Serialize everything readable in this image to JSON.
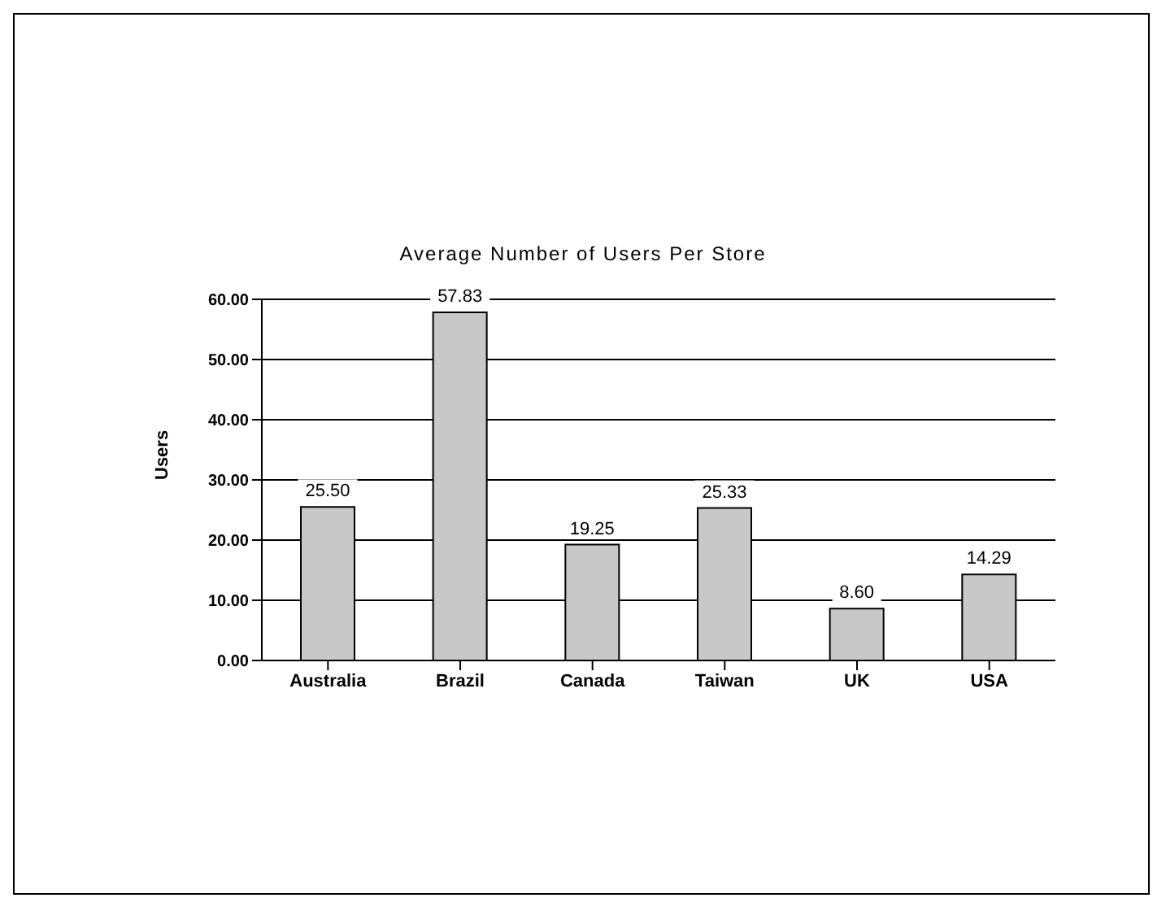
{
  "chart_data": {
    "type": "bar",
    "title": "Average Number of Users Per Store",
    "ylabel": "Users",
    "categories": [
      "Australia",
      "Brazil",
      "Canada",
      "Taiwan",
      "UK",
      "USA"
    ],
    "values": [
      25.5,
      57.83,
      19.25,
      25.33,
      8.6,
      14.29
    ],
    "color": "#c8c8c8",
    "ylim": [
      0,
      60
    ],
    "yticks": [
      {
        "value": 0,
        "label": "0.00"
      },
      {
        "value": 10,
        "label": "10.00"
      },
      {
        "value": 20,
        "label": "20.00"
      },
      {
        "value": 30,
        "label": "30.00"
      },
      {
        "value": 40,
        "label": "40.00"
      },
      {
        "value": 50,
        "label": "50.00"
      },
      {
        "value": 60,
        "label": "60.00"
      }
    ],
    "value_labels": [
      "25.50",
      "57.83",
      "19.25",
      "25.33",
      "8.60",
      "14.29"
    ],
    "grid": "y",
    "legend": false
  }
}
